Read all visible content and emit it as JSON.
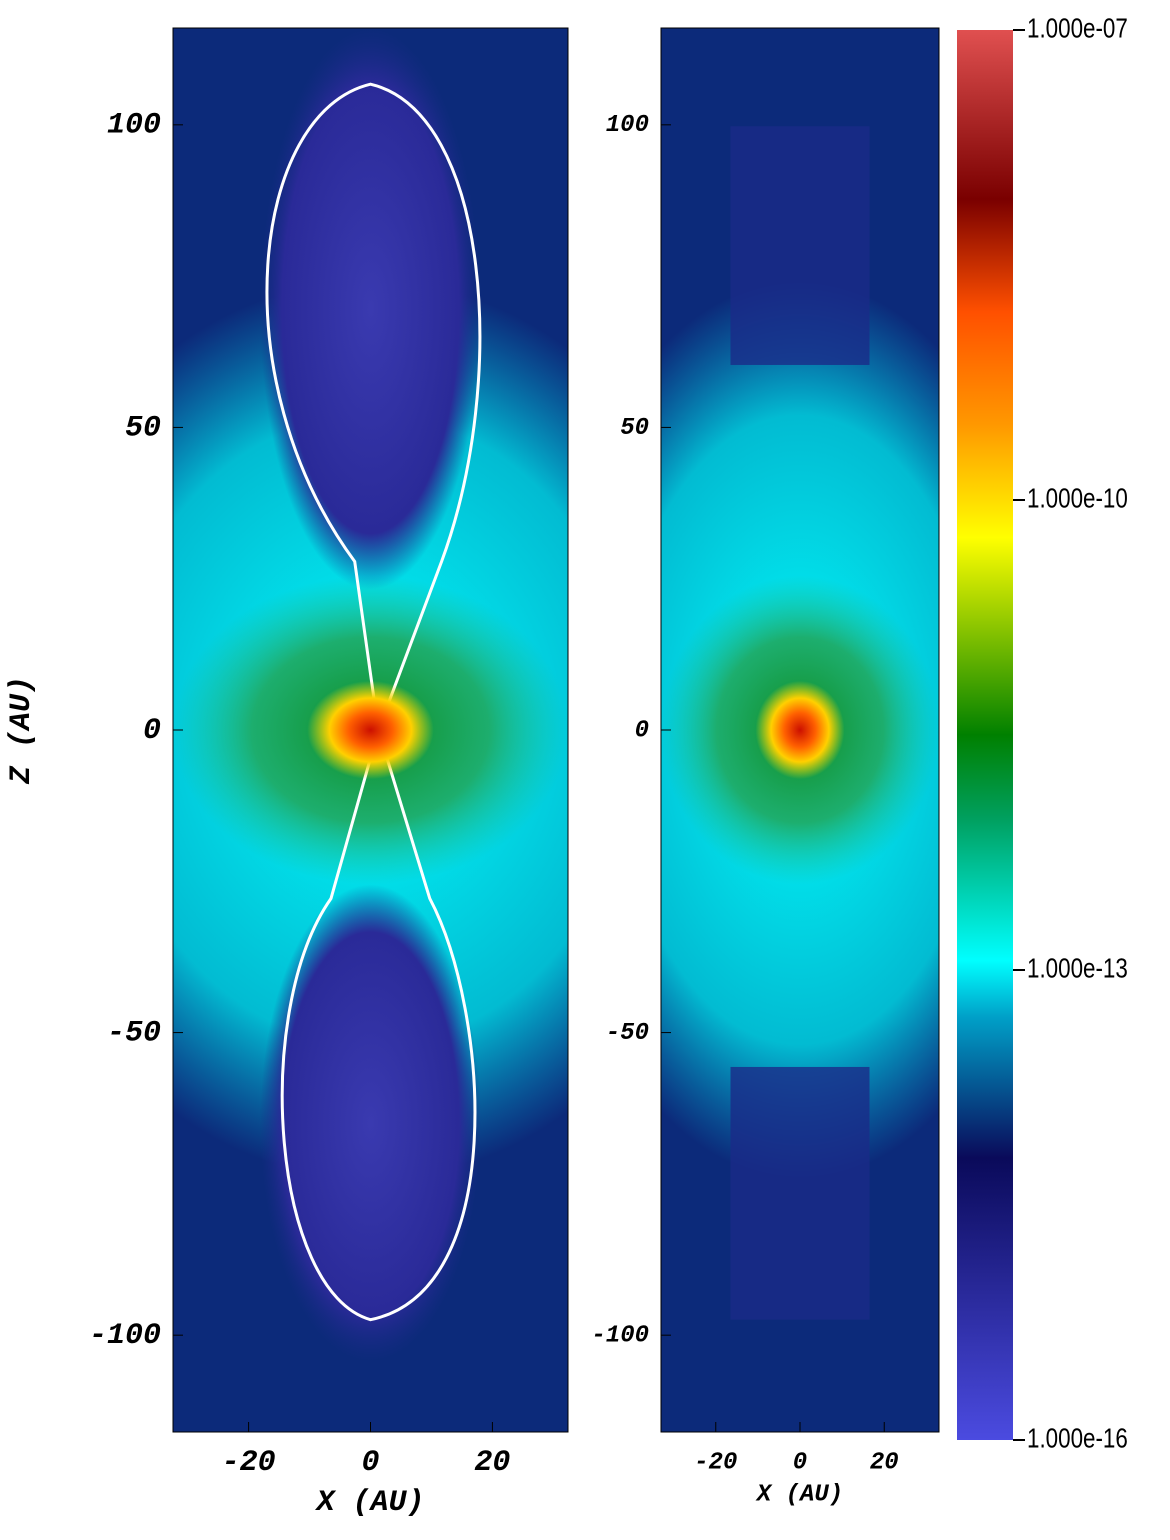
{
  "chart_data": [
    {
      "type": "heatmap",
      "xlabel": "X (AU)",
      "ylabel": "Z (AU)",
      "xlim": [
        -32.4,
        32.4
      ],
      "ylim": [
        -116,
        116
      ],
      "xticks": [
        -20,
        0,
        20
      ],
      "yticks": [
        -100,
        -50,
        0,
        50,
        100
      ]
    },
    {
      "type": "heatmap",
      "xlabel": "X (AU)",
      "xlim": [
        -33,
        33
      ],
      "ylim": [
        -116,
        116
      ],
      "xticks": [
        -20,
        0,
        20
      ],
      "yticks": [
        -100,
        -50,
        0,
        50,
        100
      ]
    },
    {
      "type": "colorbar",
      "log_scale": true,
      "ylim": [
        1e-16,
        1e-07
      ],
      "yticks": [
        {
          "value": 1e-16,
          "label": "1.000e-16"
        },
        {
          "value": 1e-13,
          "label": "1.000e-13"
        },
        {
          "value": 1e-10,
          "label": "1.000e-10"
        },
        {
          "value": 1e-07,
          "label": "1.000e-07"
        }
      ]
    }
  ]
}
